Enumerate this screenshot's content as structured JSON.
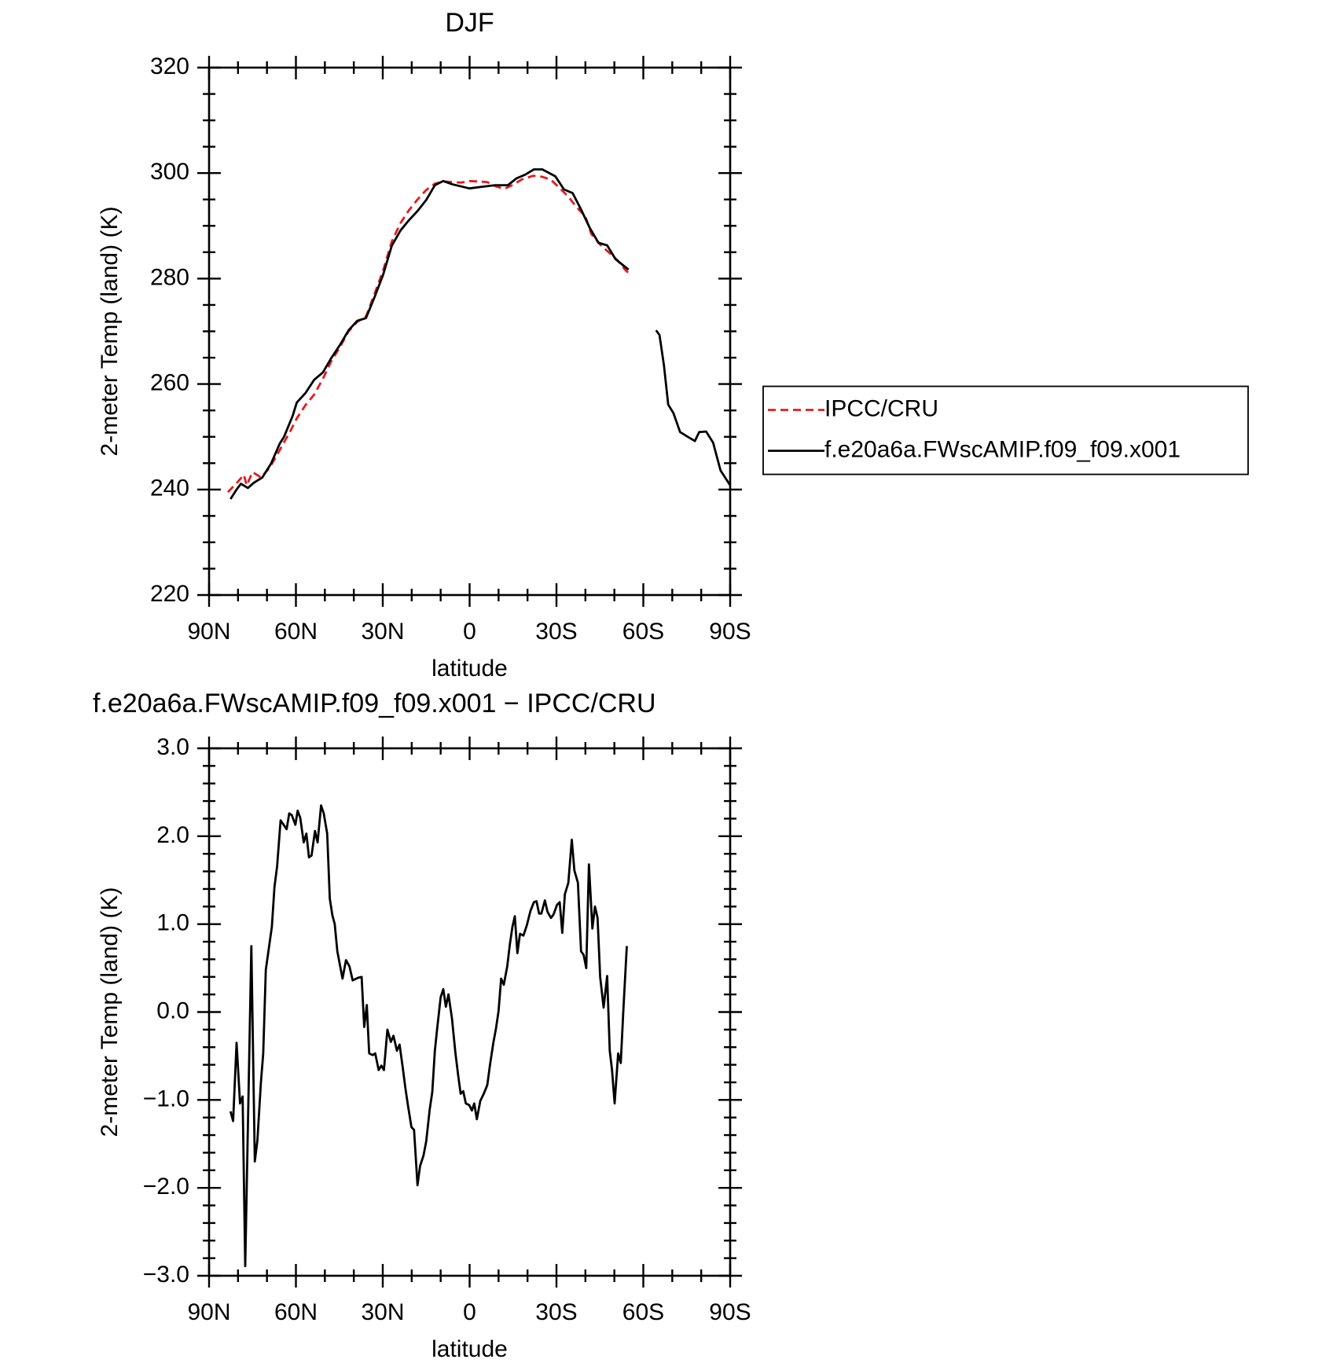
{
  "chart_data": [
    {
      "type": "line",
      "title": "DJF",
      "x_label": "latitude",
      "y_label": "2-meter Temp (land) (K)",
      "xlim": [
        90,
        -90
      ],
      "xticks": [
        {
          "value": 90,
          "label": "90N"
        },
        {
          "value": 60,
          "label": "60N"
        },
        {
          "value": 30,
          "label": "30N"
        },
        0,
        {
          "value": -30,
          "label": "30S"
        },
        {
          "value": -60,
          "label": "60S"
        },
        {
          "value": -90,
          "label": "90S"
        }
      ],
      "xminor": 2,
      "ylim": [
        220,
        320
      ],
      "yticks": [
        220,
        240,
        260,
        280,
        300,
        320
      ],
      "yminor": 3,
      "legend": "right",
      "series": [
        {
          "name": "IPCC/CRU",
          "color": "#e8191c",
          "dashed": true,
          "x": [
            83.5,
            80,
            78,
            77,
            75,
            72,
            69,
            65.6,
            62,
            59.7,
            56.7,
            53.7,
            50.7,
            47.8,
            44.8,
            41.8,
            38.8,
            35.8,
            32.9,
            29.9,
            26.9,
            23.9,
            20.9,
            18,
            15,
            12,
            9,
            6,
            3,
            0,
            -3,
            -6,
            -9,
            -12,
            -15,
            -18,
            -22,
            -25,
            -28,
            -31,
            -34,
            -37,
            -40,
            -42,
            -45,
            -48,
            -51,
            -54,
            -55.5
          ],
          "values": [
            239.5,
            241.5,
            242.8,
            240.8,
            243.3,
            242.3,
            244.2,
            247.5,
            251,
            253.5,
            256,
            258,
            261,
            264.3,
            267,
            270,
            271.8,
            272.8,
            277,
            281.5,
            287,
            290.5,
            293,
            295,
            296.8,
            298,
            298.4,
            298.3,
            298.2,
            298.5,
            298.4,
            298.3,
            297.5,
            297,
            297.8,
            298.8,
            299.5,
            299.3,
            298.8,
            297.2,
            295.6,
            293.5,
            291.8,
            288.5,
            286.5,
            285,
            283.5,
            281.5,
            280.8
          ]
        },
        {
          "name": "f.e20a6a.FWscAMIP.f09_f09.x001",
          "color": "#000000",
          "dashed": false,
          "x": [
            82.6,
            80.5,
            79,
            76.6,
            74.5,
            71.6,
            68.6,
            65.6,
            64.1,
            61.1,
            59.7,
            56.7,
            53.7,
            50.7,
            47.8,
            44.8,
            41.8,
            38.8,
            35.8,
            32.9,
            29.9,
            26.9,
            23.9,
            20.9,
            18,
            15,
            12,
            9.1,
            6.1,
            0.1,
            -4.3,
            -8.8,
            -13.2,
            -16.2,
            -19.2,
            -22.2,
            -25.1,
            -29.6,
            -32.6,
            -35.6,
            -38.5,
            -41.5,
            -44.5,
            -47.5,
            -50.4,
            -54.9,
            -60,
            -64.4,
            -65.6,
            -67.1,
            -68.6,
            -70.4,
            -72.7,
            -75.7,
            -77.8,
            -79.3,
            -81.7,
            -84.1,
            -86.7,
            -90
          ],
          "values": [
            238.2,
            240,
            241.1,
            240.3,
            241.3,
            242.3,
            244.9,
            248.7,
            250,
            254,
            256.5,
            258.3,
            260.8,
            262.2,
            264.9,
            267.4,
            270.2,
            272,
            272.5,
            276.4,
            280.7,
            286.2,
            289.1,
            291.1,
            292.8,
            294.9,
            297.7,
            298.5,
            297.9,
            297.1,
            297.4,
            297.7,
            297.7,
            299,
            299.7,
            300.7,
            300.7,
            299.4,
            296.9,
            296.2,
            293.1,
            289.6,
            286.8,
            286.3,
            283.7,
            281.7,
            null,
            270.2,
            269.3,
            263.6,
            256.1,
            254.5,
            250.9,
            249.9,
            249.2,
            250.9,
            251,
            248.9,
            243.6,
            240.8
          ]
        }
      ]
    },
    {
      "type": "line",
      "title": "f.e20a6a.FWscAMIP.f09_f09.x001 − IPCC/CRU",
      "x_label": "latitude",
      "y_label": "2-meter Temp (land) (K)",
      "xlim": [
        90,
        -90
      ],
      "xticks": [
        {
          "value": 90,
          "label": "90N"
        },
        {
          "value": 60,
          "label": "60N"
        },
        {
          "value": 30,
          "label": "30N"
        },
        0,
        {
          "value": -30,
          "label": "30S"
        },
        {
          "value": -60,
          "label": "60S"
        },
        {
          "value": -90,
          "label": "90S"
        }
      ],
      "xminor": 2,
      "ylim": [
        -3,
        3
      ],
      "yticks": [
        {
          "value": -3,
          "label": "−3.0"
        },
        {
          "value": -2,
          "label": "−2.0"
        },
        {
          "value": -1,
          "label": "−1.0"
        },
        {
          "value": 0,
          "label": "0.0"
        },
        {
          "value": 1,
          "label": "1.0"
        },
        {
          "value": 2,
          "label": "2.0"
        },
        {
          "value": 3,
          "label": "3.0"
        }
      ],
      "yminor": 4,
      "series": [
        {
          "color": "#000000",
          "dashed": false,
          "x": [
            82.6,
            81.7,
            80.5,
            79.3,
            78.4,
            77.5,
            75.4,
            74.2,
            73.3,
            72.1,
            71.3,
            70.4,
            68.3,
            67.4,
            66.5,
            65.3,
            63.2,
            62.3,
            61.4,
            60.2,
            59.4,
            58.5,
            57.3,
            56.4,
            55.5,
            54.6,
            53.4,
            52.5,
            51.3,
            50.4,
            49.2,
            48.3,
            47.4,
            46.6,
            45.7,
            43.9,
            42.7,
            41.5,
            40.4,
            38.5,
            37.3,
            36.4,
            35.5,
            34.7,
            33.5,
            32.6,
            31.4,
            30.5,
            29.6,
            28.4,
            27.2,
            26.3,
            25.1,
            24.2,
            23.1,
            22.2,
            21.3,
            20.1,
            19.2,
            18,
            17.1,
            15.9,
            15,
            13.8,
            12.9,
            12,
            11.2,
            10,
            9.1,
            8.2,
            7.3,
            6.1,
            4.9,
            4,
            3.1,
            2.2,
            1.3,
            0.1,
            -0.8,
            -1.6,
            -2.5,
            -3.7,
            -4.9,
            -6.1,
            -7,
            -8.2,
            -9.1,
            -10,
            -10.9,
            -11.8,
            -13,
            -13.9,
            -14.8,
            -15.6,
            -16.5,
            -17.4,
            -18.6,
            -19.8,
            -21,
            -22.2,
            -23.1,
            -24,
            -24.8,
            -26,
            -26.9,
            -28.1,
            -29,
            -30.2,
            -31.1,
            -32,
            -32.9,
            -34.1,
            -35.3,
            -36.2,
            -37.4,
            -38.5,
            -39.4,
            -40.3,
            -41.2,
            -42.4,
            -43.3,
            -44.2,
            -45.1,
            -46.3,
            -47.5,
            -48.4,
            -49.2,
            -50.1,
            -51.3,
            -52.2,
            -53.1,
            -54.3
          ],
          "values": [
            -1.13,
            -1.24,
            -0.35,
            -1.04,
            -0.96,
            -2.89,
            0.75,
            -1.7,
            -1.46,
            -0.81,
            -0.47,
            0.48,
            0.97,
            1.42,
            1.66,
            2.18,
            2.08,
            2.26,
            2.24,
            2.13,
            2.29,
            2.21,
            1.93,
            2.03,
            1.76,
            1.78,
            2.06,
            1.93,
            2.35,
            2.26,
            2.03,
            1.29,
            1.1,
            1,
            0.69,
            0.38,
            0.59,
            0.52,
            0.36,
            0.39,
            0.4,
            -0.17,
            0.08,
            -0.47,
            -0.49,
            -0.47,
            -0.66,
            -0.61,
            -0.66,
            -0.2,
            -0.34,
            -0.27,
            -0.44,
            -0.37,
            -0.63,
            -0.86,
            -1.06,
            -1.31,
            -1.34,
            -1.97,
            -1.75,
            -1.63,
            -1.47,
            -1.11,
            -0.91,
            -0.44,
            -0.19,
            0.17,
            0.26,
            0.06,
            0.2,
            -0.07,
            -0.47,
            -0.71,
            -0.93,
            -0.9,
            -1.04,
            -1.06,
            -1.12,
            -1.04,
            -1.22,
            -1.01,
            -0.93,
            -0.83,
            -0.61,
            -0.35,
            -0.19,
            0.01,
            0.38,
            0.31,
            0.52,
            0.77,
            0.97,
            1.09,
            0.67,
            0.89,
            0.87,
            0.99,
            1.15,
            1.25,
            1.26,
            1.12,
            1.12,
            1.27,
            1.14,
            1.07,
            1.11,
            1.22,
            1.25,
            0.9,
            1.34,
            1.47,
            1.96,
            1.61,
            1.47,
            0.69,
            0.65,
            0.5,
            1.68,
            0.95,
            1.2,
            1.07,
            0.4,
            0.05,
            0.41,
            -0.44,
            -0.66,
            -1.04,
            -0.47,
            -0.58,
            0.02,
            0.75
          ]
        }
      ]
    }
  ]
}
